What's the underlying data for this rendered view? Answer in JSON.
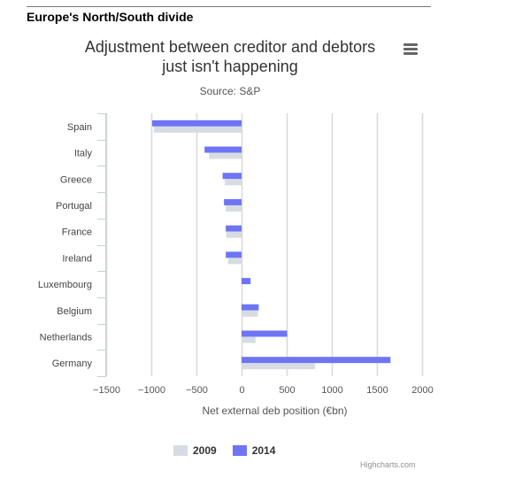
{
  "page": {
    "heading": "Europe's North/South divide"
  },
  "chart_data": {
    "type": "bar",
    "orientation": "horizontal",
    "title_lines": [
      "Adjustment between creditor and debtors",
      "just isn't happening"
    ],
    "subtitle": "Source: S&P",
    "categories": [
      "Spain",
      "Italy",
      "Greece",
      "Portugal",
      "France",
      "Ireland",
      "Luxembourg",
      "Belgium",
      "Netherlands",
      "Germany"
    ],
    "series": [
      {
        "name": "2014",
        "color": "#6e75f4",
        "values": [
          -990,
          -410,
          -210,
          -195,
          -175,
          -175,
          100,
          190,
          505,
          1650
        ]
      },
      {
        "name": "2009",
        "color": "#d6dce1",
        "values": [
          -970,
          -360,
          -185,
          -175,
          -170,
          -150,
          10,
          180,
          155,
          815
        ]
      }
    ],
    "xlabel": "Net external deb position (€bn)",
    "xticks": [
      "−1500",
      "−1000",
      "−500",
      "0",
      "500",
      "1000",
      "1500",
      "2000"
    ],
    "xtick_values": [
      -1500,
      -1000,
      -500,
      0,
      500,
      1000,
      1500,
      2000
    ],
    "xlim": [
      -1500,
      2000
    ],
    "grid": true,
    "legend_position": "bottom-center",
    "legend_order": [
      "2009",
      "2014"
    ]
  },
  "credits": "Highcharts.com",
  "menu_icon": "hamburger-menu-icon"
}
